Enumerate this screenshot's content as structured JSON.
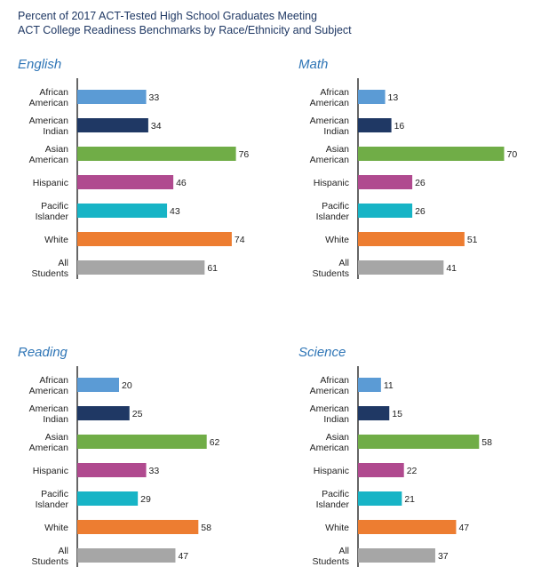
{
  "header": {
    "title_line1": "Percent of 2017 ACT-Tested High School Graduates Meeting",
    "title_line2": "ACT College Readiness Benchmarks by Race/Ethnicity and Subject"
  },
  "categories": [
    [
      "African",
      "American"
    ],
    [
      "American",
      "Indian"
    ],
    [
      "Asian",
      "American"
    ],
    [
      "Hispanic"
    ],
    [
      "Pacific",
      "Islander"
    ],
    [
      "White"
    ],
    [
      "All",
      "Students"
    ]
  ],
  "colors": [
    "#5b9bd5",
    "#1f3864",
    "#70ad47",
    "#b04a8f",
    "#17b4c6",
    "#ed7d31",
    "#a6a6a6"
  ],
  "chart_data": [
    {
      "type": "bar",
      "orientation": "horizontal",
      "title": "English",
      "categories": [
        "African American",
        "American Indian",
        "Asian American",
        "Hispanic",
        "Pacific Islander",
        "White",
        "All Students"
      ],
      "values": [
        33,
        34,
        76,
        46,
        43,
        74,
        61
      ]
    },
    {
      "type": "bar",
      "orientation": "horizontal",
      "title": "Math",
      "categories": [
        "African American",
        "American Indian",
        "Asian American",
        "Hispanic",
        "Pacific Islander",
        "White",
        "All Students"
      ],
      "values": [
        13,
        16,
        70,
        26,
        26,
        51,
        41
      ]
    },
    {
      "type": "bar",
      "orientation": "horizontal",
      "title": "Reading",
      "categories": [
        "African American",
        "American Indian",
        "Asian American",
        "Hispanic",
        "Pacific Islander",
        "White",
        "All Students"
      ],
      "values": [
        20,
        25,
        62,
        33,
        29,
        58,
        47
      ]
    },
    {
      "type": "bar",
      "orientation": "horizontal",
      "title": "Science",
      "categories": [
        "African American",
        "American Indian",
        "Asian American",
        "Hispanic",
        "Pacific Islander",
        "White",
        "All Students"
      ],
      "values": [
        11,
        15,
        58,
        22,
        21,
        47,
        37
      ]
    }
  ]
}
